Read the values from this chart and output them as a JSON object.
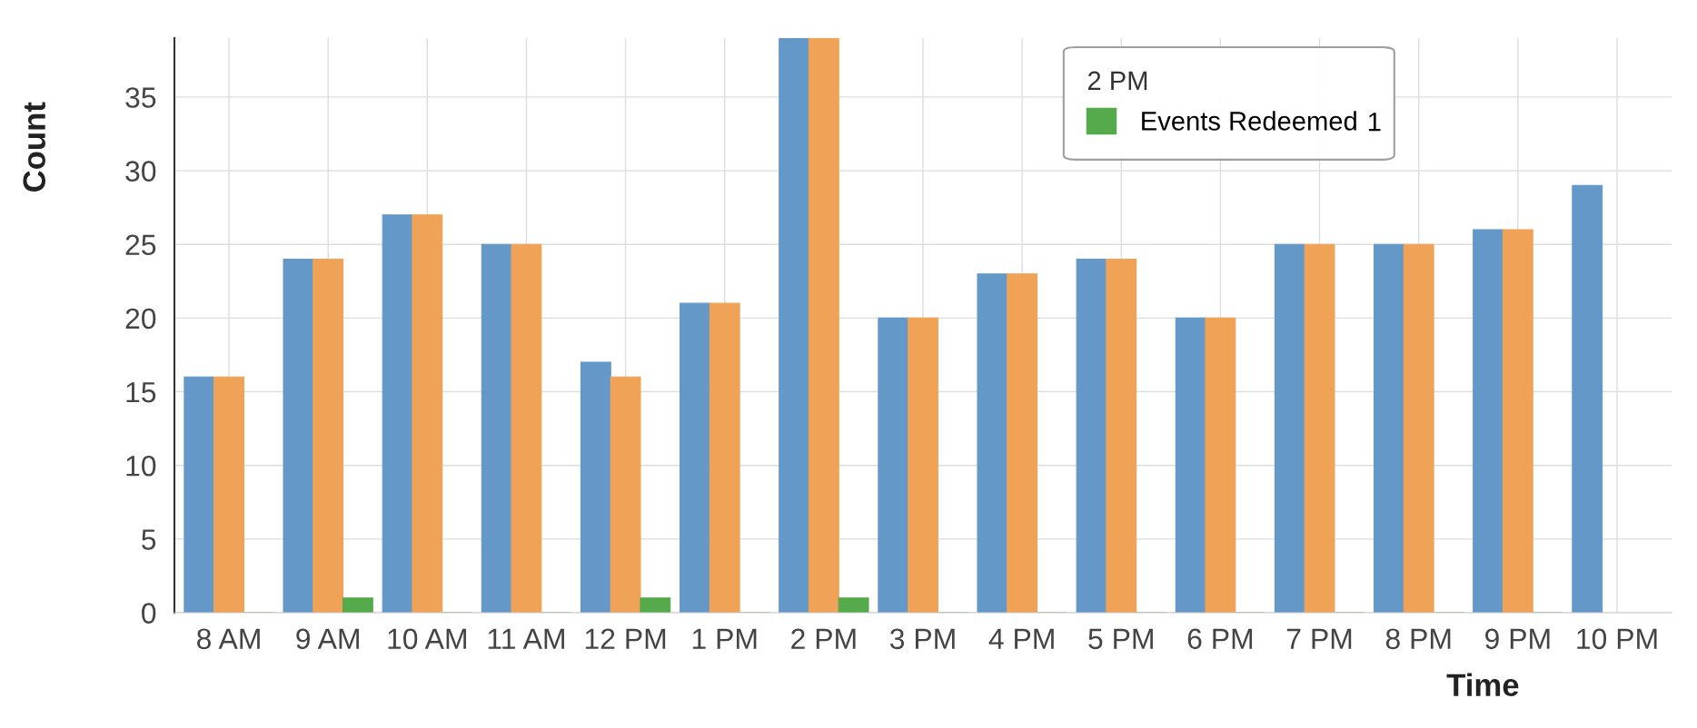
{
  "chart_data": {
    "type": "bar",
    "xlabel": "Time",
    "ylabel": "Count",
    "categories": [
      "8 AM",
      "9 AM",
      "10 AM",
      "11 AM",
      "12 PM",
      "1 PM",
      "2 PM",
      "3 PM",
      "4 PM",
      "5 PM",
      "6 PM",
      "7 PM",
      "8 PM",
      "9 PM",
      "10 PM"
    ],
    "series": [
      {
        "color": "#6398c8",
        "values": [
          16,
          24,
          27,
          25,
          17,
          21,
          39,
          20,
          23,
          24,
          20,
          25,
          25,
          26,
          29
        ]
      },
      {
        "color": "#f0a257",
        "values": [
          16,
          24,
          27,
          25,
          16,
          21,
          39,
          20,
          23,
          24,
          20,
          25,
          25,
          26,
          null
        ]
      },
      {
        "name": "Events Redeemed",
        "color": "#55aa4b",
        "values": [
          0,
          1,
          0,
          0,
          1,
          0,
          1,
          0,
          0,
          0,
          0,
          0,
          0,
          0,
          null
        ]
      }
    ],
    "ylim": [
      0,
      39
    ],
    "yticks": [
      0,
      5,
      10,
      15,
      20,
      25,
      30,
      35
    ],
    "grid": true,
    "legend": "top",
    "legend_title": "2 PM",
    "annotations": [
      "1"
    ]
  }
}
